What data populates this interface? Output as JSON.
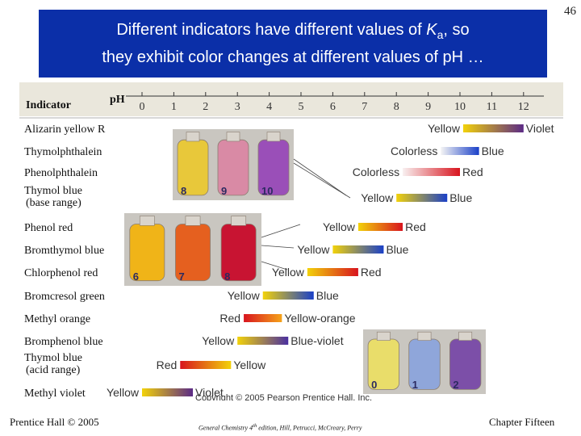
{
  "slide": {
    "number": "46",
    "title_line1_prefix": "Different indicators have different values of ",
    "title_k": "K",
    "title_sub": "a",
    "title_line1_suffix": ", so",
    "title_line2": "they exhibit color changes at different values of pH …"
  },
  "chart_data": {
    "type": "table",
    "header_indicator": "Indicator",
    "header_ph": "pH",
    "ph_ticks": [
      "0",
      "1",
      "2",
      "3",
      "4",
      "5",
      "6",
      "7",
      "8",
      "9",
      "10",
      "11",
      "12"
    ],
    "rows": [
      {
        "name": "Alizarin yellow R",
        "low": "Yellow",
        "high": "Violet",
        "ph_start": 10.1,
        "ph_end": 12.0,
        "c1": "#f2d20a",
        "c2": "#5b2a86"
      },
      {
        "name": "Thymolphthalein",
        "low": "Colorless",
        "high": "Blue",
        "ph_start": 9.4,
        "ph_end": 10.6,
        "c1": "#f4f4f4",
        "c2": "#1a40c8"
      },
      {
        "name": "Phenolphthalein",
        "low": "Colorless",
        "high": "Red",
        "ph_start": 8.2,
        "ph_end": 10.0,
        "c1": "#f8f0f0",
        "c2": "#d8141e"
      },
      {
        "name": "Thymol blue",
        "name_line2": "(base range)",
        "low": "Yellow",
        "high": "Blue",
        "ph_start": 8.0,
        "ph_end": 9.6,
        "c1": "#f2d20a",
        "c2": "#1a40c8"
      },
      {
        "name": "Phenol red",
        "low": "Yellow",
        "high": "Red",
        "ph_start": 6.8,
        "ph_end": 8.2,
        "c1": "#f2d20a",
        "c2": "#d8141e"
      },
      {
        "name": "Bromthymol blue",
        "low": "Yellow",
        "high": "Blue",
        "ph_start": 6.0,
        "ph_end": 7.6,
        "c1": "#f2d20a",
        "c2": "#1a40c8"
      },
      {
        "name": "Chlorphenol red",
        "low": "Yellow",
        "high": "Red",
        "ph_start": 5.2,
        "ph_end": 6.8,
        "c1": "#f2d20a",
        "c2": "#d8141e"
      },
      {
        "name": "Bromcresol green",
        "low": "Yellow",
        "high": "Blue",
        "ph_start": 3.8,
        "ph_end": 5.4,
        "c1": "#f2d20a",
        "c2": "#1a40c8"
      },
      {
        "name": "Methyl orange",
        "low": "Red",
        "high": "Yellow-orange",
        "ph_start": 3.2,
        "ph_end": 4.4,
        "c1": "#d8141e",
        "c2": "#f5a31a"
      },
      {
        "name": "Bromphenol blue",
        "low": "Yellow",
        "high": "Blue-violet",
        "ph_start": 3.0,
        "ph_end": 4.6,
        "c1": "#f2d20a",
        "c2": "#4a2fa0"
      },
      {
        "name": "Thymol blue",
        "name_line2": "(acid range)",
        "low": "Red",
        "high": "Yellow",
        "ph_start": 1.2,
        "ph_end": 2.8,
        "c1": "#d8141e",
        "c2": "#f2d20a"
      },
      {
        "name": "Methyl violet",
        "low": "Yellow",
        "high": "Violet",
        "ph_start": 0.0,
        "ph_end": 1.6,
        "c1": "#f2d20a",
        "c2": "#5b2a86"
      }
    ],
    "photos": [
      {
        "labels": [
          "8",
          "9",
          "10"
        ],
        "colors": [
          "#e8c83a",
          "#d98aa5",
          "#9a4fb8"
        ]
      },
      {
        "labels": [
          "6",
          "7",
          "8"
        ],
        "colors": [
          "#f0b418",
          "#e5601f",
          "#c81432"
        ]
      },
      {
        "labels": [
          "0",
          "1",
          "2"
        ],
        "colors": [
          "#e9dd6a",
          "#8fa6da",
          "#7c4fa8"
        ]
      }
    ],
    "copyright": "Copyright © 2005 Pearson Prentice Hall, Inc."
  },
  "footer": {
    "left": "Prentice Hall © 2005",
    "mid_prefix": "General Chemistry 4",
    "mid_sup": "th",
    "mid_suffix": " edition, Hill, Petrucci, McCreary, Perry",
    "right": "Chapter Fifteen"
  },
  "colors": {
    "title_bg": "#0b2fa8",
    "header_bg": "#eae7dc",
    "photo_bg": "#c9c6c0"
  }
}
